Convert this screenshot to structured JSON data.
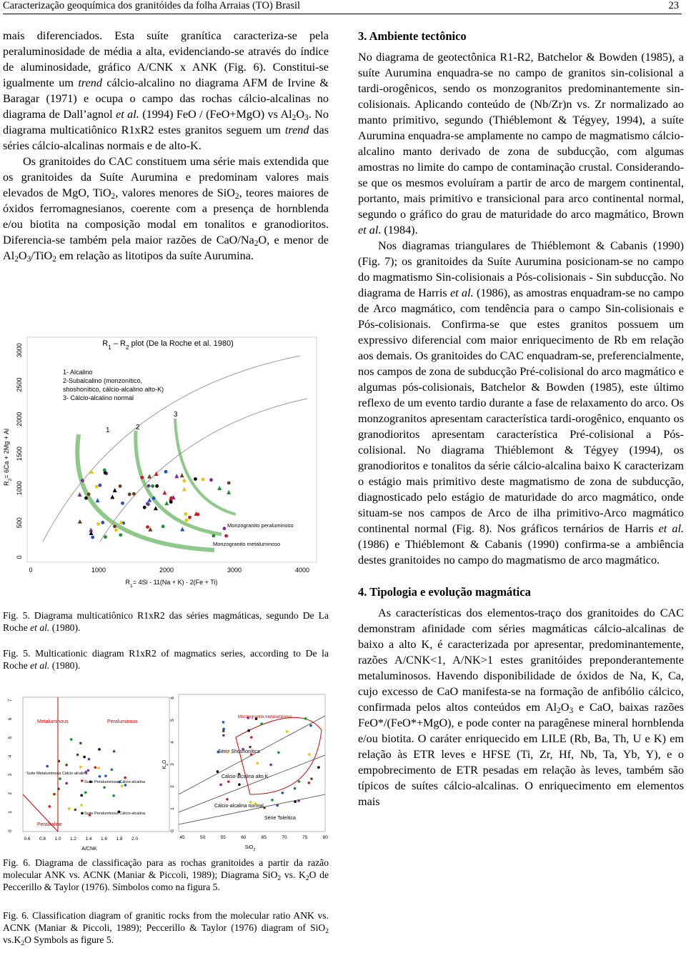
{
  "header": {
    "title": "Caracterização geoquímica dos granitóides da folha Arraias (TO) Brasil",
    "page": "23"
  },
  "left": {
    "paragraphs": [
      [
        "mais diferenciados. Esta suíte granítica caracteriza-se pela peraluminosidade de média a alta, evidenciando-se através do índice de aluminosidade, gráfico A/CNK x ANK (Fig. 6). Constitui-se igualmente um ",
        {
          "i": "trend"
        },
        " cálcio-alcalino no diagrama AFM de Irvine & Baragar (1971) e ocupa o campo das rochas cálcio-alcalinas no diagrama de Dall’agnol ",
        {
          "i": "et al."
        },
        " (1994) FeO / (FeO+MgO) vs Al",
        {
          "sub": "2"
        },
        "O",
        {
          "sub": "3"
        },
        ". No diagrama multicatiônico R1xR2 estes granitos seguem um ",
        {
          "i": "trend"
        },
        " das séries cálcio-alcalinas normais e de alto-K."
      ],
      [
        "Os granitoides do CAC constituem uma série mais extendida que os granitoides da Suíte Aurumina e predominam valores mais elevados de MgO, TiO",
        {
          "sub": "2"
        },
        ", valores menores de SiO",
        {
          "sub": "2"
        },
        ", teores maiores de óxidos ferromagnesianos, coerente com a presença de hornblenda e/ou biotita na composição modal em tonalitos e granodioritos. Diferencia-se também pela maior razões de CaO/Na",
        {
          "sub": "2"
        },
        "O, e menor de Al",
        {
          "sub": "2"
        },
        "O",
        {
          "sub": "3"
        },
        "/TiO",
        {
          "sub": "2"
        },
        " em relação as litotipos da suíte Aurumina."
      ]
    ]
  },
  "figure5": {
    "title": [
      "R",
      {
        "sub": "1"
      },
      " – R",
      {
        "sub": "2"
      },
      " plot (De la Roche et al. 1980)"
    ],
    "legend": [
      "1- Alcalino",
      "2-Subalcalino (monzonítico,",
      "shoshonítico, cálcio-alcalino alto-K)",
      "3- Cálcio-alcalino normal"
    ],
    "fields": [
      "1",
      "2",
      "3"
    ],
    "monzo_per": "Monzogranito peraluminoso",
    "monzo_met": "Monzogranito metaluminoso",
    "yticks": [
      0,
      500,
      1000,
      1500,
      2000,
      2500,
      3000
    ],
    "xticks": [
      0,
      1000,
      2000,
      3000,
      4000
    ],
    "ylabel": [
      "R",
      {
        "sub": "2"
      },
      "= 6Ca + 2Mg + Al"
    ],
    "xlabel": [
      "R",
      {
        "sub": "1"
      },
      "= 4Si - 11(Na + K) - 2(Fe + Ti)"
    ]
  },
  "captions5": [
    [
      "Fig. 5. Diagrama multicatiônico R1xR2 das séries magmáticas, segundo De La Roche ",
      {
        "i": "et al."
      },
      " (1980)."
    ],
    [
      "Fig. 5. Multicationic diagram R1xR2 of magmatics series, according to De la Roche ",
      {
        "i": "et al."
      },
      " (1980)."
    ]
  ],
  "figure6": {
    "left": {
      "metaluminous": "Metaluminous",
      "peraluminous": "Peraluminous",
      "peralkaline": "Peralkaline",
      "suite1": "Suite Metaluminosa Cálcio-alcalina",
      "suite2": "Suite Peraluminosa Cálcio-alcalina",
      "suite3": "Suite Peraluminosa Cálcio-alcalina",
      "xlabel": "A/CNK",
      "xticks": [
        "0.6",
        "0.8",
        "1.0",
        "1.2",
        "1.4",
        "1.6",
        "1.8",
        "2.0"
      ],
      "yticks": [
        0,
        1,
        2,
        3,
        4,
        5,
        6,
        7
      ]
    },
    "right": {
      "shoshonitic": "Série Shoshonítica",
      "high_k": "Cálcio-alcalina alto K",
      "normal": "Cálcio-alcalina normal",
      "tholeiitic": "Série Toleítica",
      "monzo": "Monzogranito metaluminoso",
      "xlabel": [
        "SiO",
        {
          "sub": "2"
        }
      ],
      "ylabel": [
        "K",
        {
          "sub": "2"
        },
        "O"
      ],
      "xticks": [
        45,
        50,
        55,
        60,
        65,
        70,
        75,
        80
      ],
      "yticks": [
        0,
        1,
        2,
        3,
        4,
        5,
        6
      ]
    }
  },
  "captions6": [
    [
      "Fig. 6. Diagrama de classificação para as rochas granitoides a partir da razão molecular ANK vs. ACNK (Maniar & Piccoli, 1989); Diagrama SiO",
      {
        "sub": "2"
      },
      " vs. K",
      {
        "sub": "2"
      },
      "O de Peccerillo & Taylor (1976). Símbolos como na figura 5."
    ],
    [
      "Fig. 6. Classification diagram of granitic rocks from the molecular ratio ANK vs. ACNK (Maniar & Piccoli, 1989); Peccerillo & Taylor (1976) diagram of SiO",
      {
        "sub": "2"
      },
      " vs.K",
      {
        "sub": "2"
      },
      "O Symbols as figure 5."
    ]
  ],
  "right": {
    "sections": [
      {
        "heading": "3. Ambiente tectônico",
        "paragraphs": [
          [
            "No diagrama de geotectônica R1-R2, Batchelor & Bowden (1985), a suíte Aurumina enquadra-se no campo de granitos sin-colisional a tardi-orogênicos, sendo os monzogranitos predominantemente sin-colisionais. Aplicando conteúdo de (Nb/Zr)n vs. Zr normalizado ao manto primitivo, segundo (Thiéblemont & Tégyey, 1994), a suíte Aurumina enquadra-se amplamente no campo de magmatismo cálcio-alcalino manto derivado de zona de subducção, com algumas amostras no limite do campo de contaminação crustal. Considerando-se que os mesmos evoluíram a partir de arco de margem continental, portanto, mais primitivo e transicional para arco continental normal, segundo o gráfico do grau de maturidade do arco magmático, Brown ",
            {
              "i": "et al"
            },
            ". (1984)."
          ],
          [
            "Nos diagramas triangulares de Thiéblemont & Cabanis (1990) (Fig. 7); os granitoides da Suíte Aurumina posicionam-se no campo do magmatismo Sin-colisionais a Pós-colisionais - Sin subducção. No diagrama de Harris ",
            {
              "i": "et al."
            },
            " (1986), as amostras enquadram-se no campo de Arco magmático, com tendência para o campo Sin-colisionais e Pós-colisionais. Confirma-se que estes granitos possuem um expressivo diferencial com maior enriquecimento de Rb em relação aos demais. Os granitoides do CAC enquadram-se, preferencialmente, nos campos de zona de subducção Pré-colisional do arco magmático e algumas pós-colisionais, Batchelor & Bowden (1985), este último reflexo de um evento tardio durante a fase de relaxamento do arco. Os monzogranitos apresentam característica tardi-orogênico, enquanto os granodioritos apresentam característica Pré-colisional a Pós-colisional. No diagrama Thiéblemont & Tégyey (1994), os granodioritos e tonalitos da série cálcio-alcalina baixo K caracterizam o estágio mais primitivo deste magmatismo de zona de subducção, diagnosticado pelo estágio de maturidade do arco magmático, onde situam-se nos campos de Arco de ilha primitivo-Arco magmático continental normal (Fig. 8). Nos gráficos ternários de Harris ",
            {
              "i": "et al."
            },
            " (1986) e Thiéblemont & Cabanis (1990) confirma-se a ambiência destes granitoides no campo do magmatismo de arco magmático."
          ]
        ]
      },
      {
        "heading": "4. Tipologia e evolução magmática",
        "paragraphs": [
          [
            "As características dos elementos-traço dos granitoides do CAC demonstram afinidade com séries magmáticas cálcio-alcalinas de baixo a alto K, é caracterizada por apresentar, predominantemente, razões A/CNK<1, A/NK>1 estes granitóides preponderantemente metaluminosos. Havendo disponibilidade de óxidos de Na, K, Ca, cujo excesso de CaO manifesta-se na formação de anfibólio cálcico, confirmada pelos altos conteúdos em Al",
            {
              "sub": "2"
            },
            "O",
            {
              "sub": "3"
            },
            " e CaO, baixas razões FeO*/(FeO*+MgO), e pode conter na paragênese mineral hornblenda e/ou biotita. O caráter enriquecido em LILE (Rb, Ba, Th, U e K) em relação às ETR leves e HFSE (Ti, Zr, Hf, Nb, Ta, Yb, Y), e o empobrecimento de ETR pesadas em relação às leves, também são típicos de suítes cálcio-alcalinas. O enriquecimento em elementos mais"
          ]
        ]
      }
    ]
  }
}
